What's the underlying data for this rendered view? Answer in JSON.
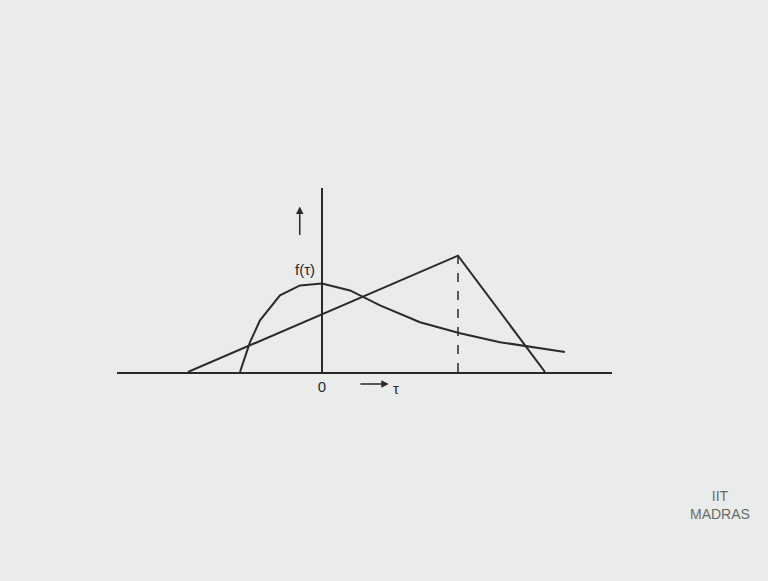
{
  "chart_data": {
    "type": "line",
    "y_label": "f(τ)",
    "x_label": "τ",
    "series": [
      {
        "color": "#2a2a2a",
        "line_style": "solid",
        "x": [
          -1.64,
          -1.44,
          -1.24,
          -0.84,
          -0.44,
          0,
          0.56,
          1.16,
          1.96,
          2.76,
          3.56,
          4.36,
          4.86
        ],
        "values": [
          0,
          0.6,
          1.04,
          1.54,
          1.74,
          1.78,
          1.64,
          1.34,
          1.0,
          0.78,
          0.6,
          0.48,
          0.4
        ]
      },
      {
        "color": "#2a2a2a",
        "line_style": "solid",
        "x": [
          -2.68,
          2.72,
          4.46
        ],
        "values": [
          0,
          2.34,
          0
        ]
      }
    ],
    "xlim": [
      -4.1,
      5.8
    ],
    "xticks": [
      0
    ],
    "ylim": [
      0,
      3.7
    ],
    "yticks": [],
    "tick_labels": "x",
    "grid": false,
    "annotations": [
      "IIT",
      "MADRAS"
    ]
  }
}
